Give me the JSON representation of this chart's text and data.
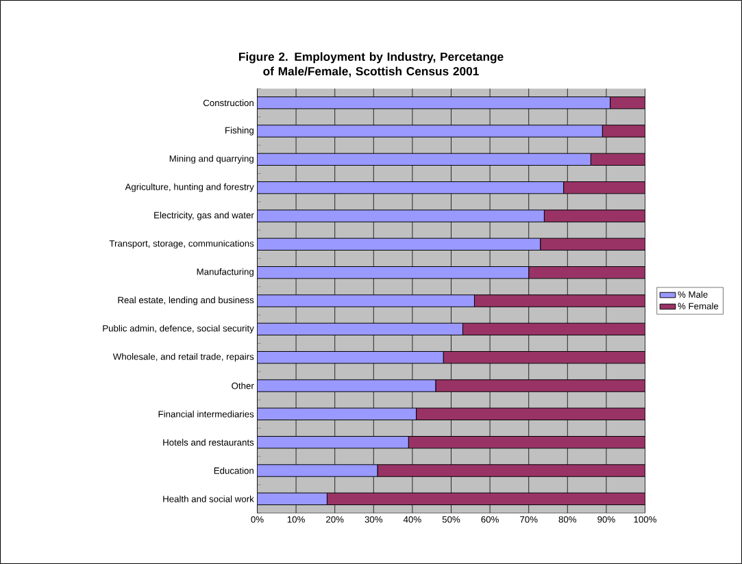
{
  "chart_data": {
    "type": "bar",
    "orientation": "horizontal",
    "stacked": true,
    "title": "Figure 2. Employment by Industry, Percetange of Male/Female, Scottish Census 2001",
    "categories": [
      "Construction",
      "Fishing",
      "Mining and quarrying",
      "Agriculture, hunting and forestry",
      "Electricity, gas and water",
      "Transport, storage, communications",
      "Manufacturing",
      "Real estate, lending and business",
      "Public admin, defence, social security",
      "Wholesale, and retail trade, repairs",
      "Other",
      "Financial intermediaries",
      "Hotels and restaurants",
      "Education",
      "Health and social work"
    ],
    "series": [
      {
        "name": "% Male",
        "color": "#9999ff",
        "values": [
          91,
          89,
          86,
          79,
          74,
          73,
          70,
          56,
          53,
          48,
          46,
          41,
          39,
          31,
          18
        ]
      },
      {
        "name": "% Female",
        "color": "#993366",
        "values": [
          9,
          11,
          14,
          21,
          26,
          27,
          30,
          44,
          47,
          52,
          54,
          59,
          61,
          69,
          82
        ]
      }
    ],
    "xlim": [
      0,
      100
    ],
    "xticks": [
      {
        "value": 0,
        "label": "0%"
      },
      {
        "value": 10,
        "label": "10%"
      },
      {
        "value": 20,
        "label": "20%"
      },
      {
        "value": 30,
        "label": "30%"
      },
      {
        "value": 40,
        "label": "40%"
      },
      {
        "value": 50,
        "label": "50%"
      },
      {
        "value": 60,
        "label": "60%"
      },
      {
        "value": 70,
        "label": "70%"
      },
      {
        "value": 80,
        "label": "80%"
      },
      {
        "value": 90,
        "label": "90%"
      },
      {
        "value": 100,
        "label": "100%"
      }
    ],
    "grid": "x",
    "legend": "right"
  }
}
